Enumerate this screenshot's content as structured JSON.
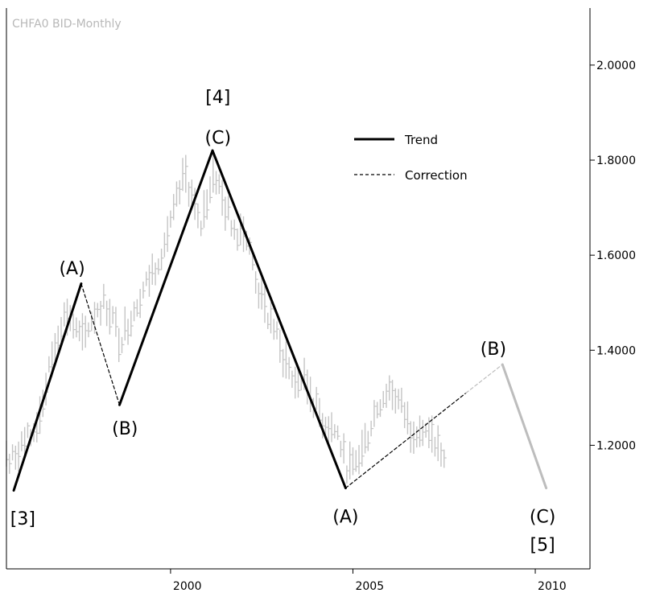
{
  "chart_data": {
    "type": "line",
    "title": "CHFA0 BID-Monthly",
    "x_range": [
      1995.5,
      2011.5
    ],
    "y_range": [
      0.94,
      2.12
    ],
    "y_ticks": [
      {
        "value": 2.0,
        "label": "2.0000"
      },
      {
        "value": 1.8,
        "label": "1.8000"
      },
      {
        "value": 1.6,
        "label": "1.6000"
      },
      {
        "value": 1.4,
        "label": "1.4000"
      },
      {
        "value": 1.2,
        "label": "1.2000"
      }
    ],
    "x_ticks": [
      {
        "value": 2000,
        "label": "2000"
      },
      {
        "value": 2005,
        "label": "2005"
      },
      {
        "value": 2010,
        "label": "2010"
      }
    ],
    "legend": [
      {
        "label": "Trend",
        "style": "solid"
      },
      {
        "label": "Correction",
        "style": "dashed"
      }
    ],
    "price_series": [
      [
        1995.5,
        1.18
      ],
      [
        1995.6,
        1.16
      ],
      [
        1995.8,
        1.19
      ],
      [
        1996.0,
        1.21
      ],
      [
        1996.2,
        1.22
      ],
      [
        1996.4,
        1.26
      ],
      [
        1996.6,
        1.33
      ],
      [
        1996.8,
        1.4
      ],
      [
        1997.0,
        1.46
      ],
      [
        1997.2,
        1.48
      ],
      [
        1997.4,
        1.44
      ],
      [
        1997.6,
        1.42
      ],
      [
        1997.8,
        1.46
      ],
      [
        1998.0,
        1.49
      ],
      [
        1998.2,
        1.5
      ],
      [
        1998.4,
        1.47
      ],
      [
        1998.6,
        1.42
      ],
      [
        1998.8,
        1.45
      ],
      [
        1999.0,
        1.49
      ],
      [
        1999.2,
        1.52
      ],
      [
        1999.4,
        1.55
      ],
      [
        1999.6,
        1.58
      ],
      [
        1999.8,
        1.62
      ],
      [
        2000.0,
        1.66
      ],
      [
        2000.2,
        1.72
      ],
      [
        2000.4,
        1.77
      ],
      [
        2000.6,
        1.72
      ],
      [
        2000.8,
        1.65
      ],
      [
        2001.0,
        1.72
      ],
      [
        2001.2,
        1.78
      ],
      [
        2001.4,
        1.72
      ],
      [
        2001.6,
        1.68
      ],
      [
        2001.8,
        1.65
      ],
      [
        2002.0,
        1.66
      ],
      [
        2002.2,
        1.6
      ],
      [
        2002.4,
        1.53
      ],
      [
        2002.6,
        1.48
      ],
      [
        2002.8,
        1.46
      ],
      [
        2003.0,
        1.4
      ],
      [
        2003.2,
        1.37
      ],
      [
        2003.4,
        1.33
      ],
      [
        2003.6,
        1.34
      ],
      [
        2003.8,
        1.32
      ],
      [
        2004.0,
        1.28
      ],
      [
        2004.2,
        1.25
      ],
      [
        2004.4,
        1.24
      ],
      [
        2004.6,
        1.22
      ],
      [
        2004.8,
        1.16
      ],
      [
        2005.0,
        1.15
      ],
      [
        2005.2,
        1.18
      ],
      [
        2005.4,
        1.22
      ],
      [
        2005.6,
        1.27
      ],
      [
        2005.8,
        1.3
      ],
      [
        2006.0,
        1.32
      ],
      [
        2006.2,
        1.3
      ],
      [
        2006.4,
        1.27
      ],
      [
        2006.6,
        1.23
      ],
      [
        2006.8,
        1.24
      ],
      [
        2007.0,
        1.22
      ],
      [
        2007.2,
        1.21
      ],
      [
        2007.4,
        1.19
      ],
      [
        2007.5,
        1.16
      ]
    ],
    "waves": [
      {
        "style": "trend",
        "points": [
          [
            1995.7,
            1.105
          ],
          [
            1997.55,
            1.54
          ]
        ]
      },
      {
        "style": "correction",
        "points": [
          [
            1997.55,
            1.54
          ],
          [
            1998.6,
            1.285
          ]
        ]
      },
      {
        "style": "trend",
        "points": [
          [
            1998.6,
            1.285
          ],
          [
            2001.15,
            1.82
          ]
        ]
      },
      {
        "style": "trend",
        "points": [
          [
            2001.15,
            1.82
          ],
          [
            2004.8,
            1.11
          ]
        ]
      },
      {
        "style": "correction",
        "points": [
          [
            2004.8,
            1.11
          ],
          [
            2008.1,
            1.31
          ]
        ]
      },
      {
        "style": "projection",
        "points": [
          [
            2008.1,
            1.31
          ],
          [
            2009.1,
            1.37
          ]
        ]
      },
      {
        "style": "projection",
        "points": [
          [
            2009.1,
            1.37
          ],
          [
            2010.3,
            1.11
          ]
        ]
      }
    ],
    "annotations": [
      {
        "text": "[3]",
        "x": 1995.95,
        "y": 1.07,
        "va": "top"
      },
      {
        "text": "(A)",
        "x": 1997.3,
        "y": 1.56,
        "va": "bottom"
      },
      {
        "text": "(B)",
        "x": 1998.75,
        "y": 1.26,
        "va": "top"
      },
      {
        "text": "[4]",
        "x": 2001.3,
        "y": 1.92,
        "va": "bottom"
      },
      {
        "text": "(C)",
        "x": 2001.3,
        "y": 1.835,
        "va": "bottom"
      },
      {
        "text": "(A)",
        "x": 2004.8,
        "y": 1.075,
        "va": "top"
      },
      {
        "text": "(B)",
        "x": 2008.85,
        "y": 1.39,
        "va": "bottom"
      },
      {
        "text": "(C)",
        "x": 2010.2,
        "y": 1.075,
        "va": "top"
      },
      {
        "text": "[5]",
        "x": 2010.2,
        "y": 1.015,
        "va": "top"
      }
    ]
  }
}
